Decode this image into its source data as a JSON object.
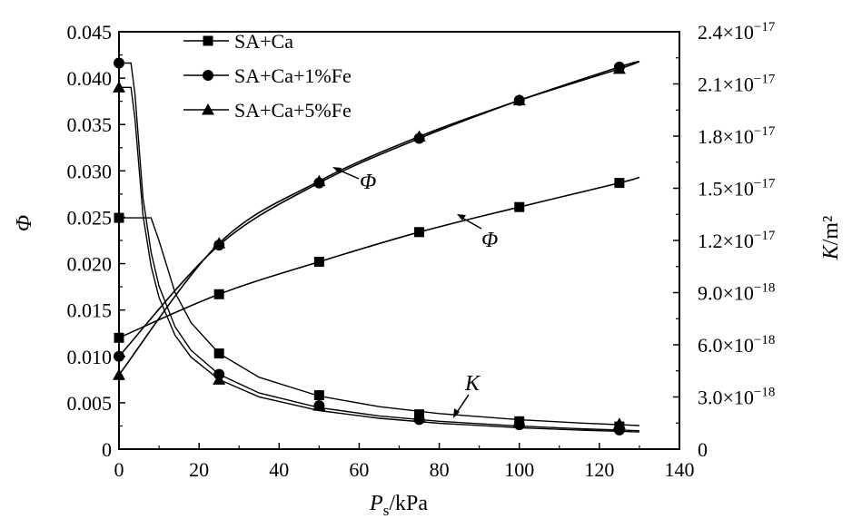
{
  "chart_data": {
    "type": "line",
    "xlabel": {
      "main": "P",
      "sub": "s",
      "unit": "/kPa"
    },
    "ylabel_left": "Φ",
    "ylabel_right": {
      "main": "K",
      "unit": "/m²"
    },
    "xlim": [
      0,
      140
    ],
    "ylim_left": [
      0,
      0.045
    ],
    "ylim_right": [
      0,
      2.4e-17
    ],
    "x_ticks": [
      0,
      20,
      40,
      60,
      80,
      100,
      120,
      140
    ],
    "x_tick_labels": [
      "0",
      "20",
      "40",
      "60",
      "80",
      "100",
      "120",
      "140"
    ],
    "y_left_ticks": [
      0,
      0.005,
      0.01,
      0.015,
      0.02,
      0.025,
      0.03,
      0.035,
      0.04,
      0.045
    ],
    "y_left_tick_labels": [
      "0",
      "0.005",
      "0.010",
      "0.015",
      "0.020",
      "0.025",
      "0.030",
      "0.035",
      "0.040",
      "0.045"
    ],
    "y_right_ticks": [
      0,
      3e-18,
      6e-18,
      9e-18,
      1.2e-17,
      1.5e-17,
      1.8e-17,
      2.1e-17,
      2.4e-17
    ],
    "y_right_tick_labels": [
      {
        "mant": "0",
        "exp": ""
      },
      {
        "mant": "3.0",
        "exp": "−18"
      },
      {
        "mant": "6.0",
        "exp": "−18"
      },
      {
        "mant": "9.0",
        "exp": "−18"
      },
      {
        "mant": "1.2",
        "exp": "−17"
      },
      {
        "mant": "1.5",
        "exp": "−17"
      },
      {
        "mant": "1.8",
        "exp": "−17"
      },
      {
        "mant": "2.1",
        "exp": "−17"
      },
      {
        "mant": "2.4",
        "exp": "−17"
      }
    ],
    "times_sign": "×",
    "exp_base": "10",
    "legend_position": "top-left",
    "series": [
      {
        "name": "SA+Ca",
        "marker": "square",
        "axis": "left",
        "quantity": "phi",
        "x": [
          0,
          25,
          50,
          75,
          100,
          125
        ],
        "y": [
          0.012,
          0.0167,
          0.0202,
          0.0234,
          0.0261,
          0.0287
        ],
        "curve_end": [
          130,
          0.0293
        ]
      },
      {
        "name": "SA+Ca+1%Fe",
        "marker": "circle",
        "axis": "left",
        "quantity": "phi",
        "x": [
          0,
          25,
          50,
          75,
          100,
          125
        ],
        "y": [
          0.01,
          0.022,
          0.0287,
          0.0335,
          0.0376,
          0.0412
        ],
        "curve_end": [
          130,
          0.0418
        ]
      },
      {
        "name": "SA+Ca+5%Fe",
        "marker": "triangle",
        "axis": "left",
        "quantity": "phi",
        "x": [
          0,
          25,
          50,
          75,
          100,
          125
        ],
        "y": [
          0.008,
          0.0222,
          0.0289,
          0.0337,
          0.0376,
          0.041
        ],
        "curve_end": [
          130,
          0.0418
        ]
      },
      {
        "name": "SA+Ca",
        "marker": "square",
        "axis": "right",
        "quantity": "K",
        "x": [
          0,
          25,
          50,
          75,
          100,
          125
        ],
        "y": [
          1.33e-17,
          5.5e-18,
          3.1e-18,
          2e-18,
          1.6e-18,
          1.3e-18
        ]
      },
      {
        "name": "SA+Ca+1%Fe",
        "marker": "circle",
        "axis": "right",
        "quantity": "K",
        "x": [
          0,
          25,
          50,
          75,
          100,
          125
        ],
        "y": [
          2.22e-17,
          4.3e-18,
          2.5e-18,
          1.7e-18,
          1.4e-18,
          1.1e-18
        ]
      },
      {
        "name": "SA+Ca+5%Fe",
        "marker": "triangle",
        "axis": "right",
        "quantity": "K",
        "x": [
          0,
          25,
          50,
          75,
          100,
          125
        ],
        "y": [
          2.08e-17,
          4e-18,
          2.5e-18,
          1.85e-18,
          1.55e-18,
          1.45e-18
        ]
      }
    ],
    "annotations": [
      {
        "text": "Φ",
        "target": "SA+Ca+1%Fe Φ curve"
      },
      {
        "text": "Φ",
        "target": "SA+Ca Φ curve"
      },
      {
        "text": "K",
        "target": "K curves"
      }
    ]
  }
}
